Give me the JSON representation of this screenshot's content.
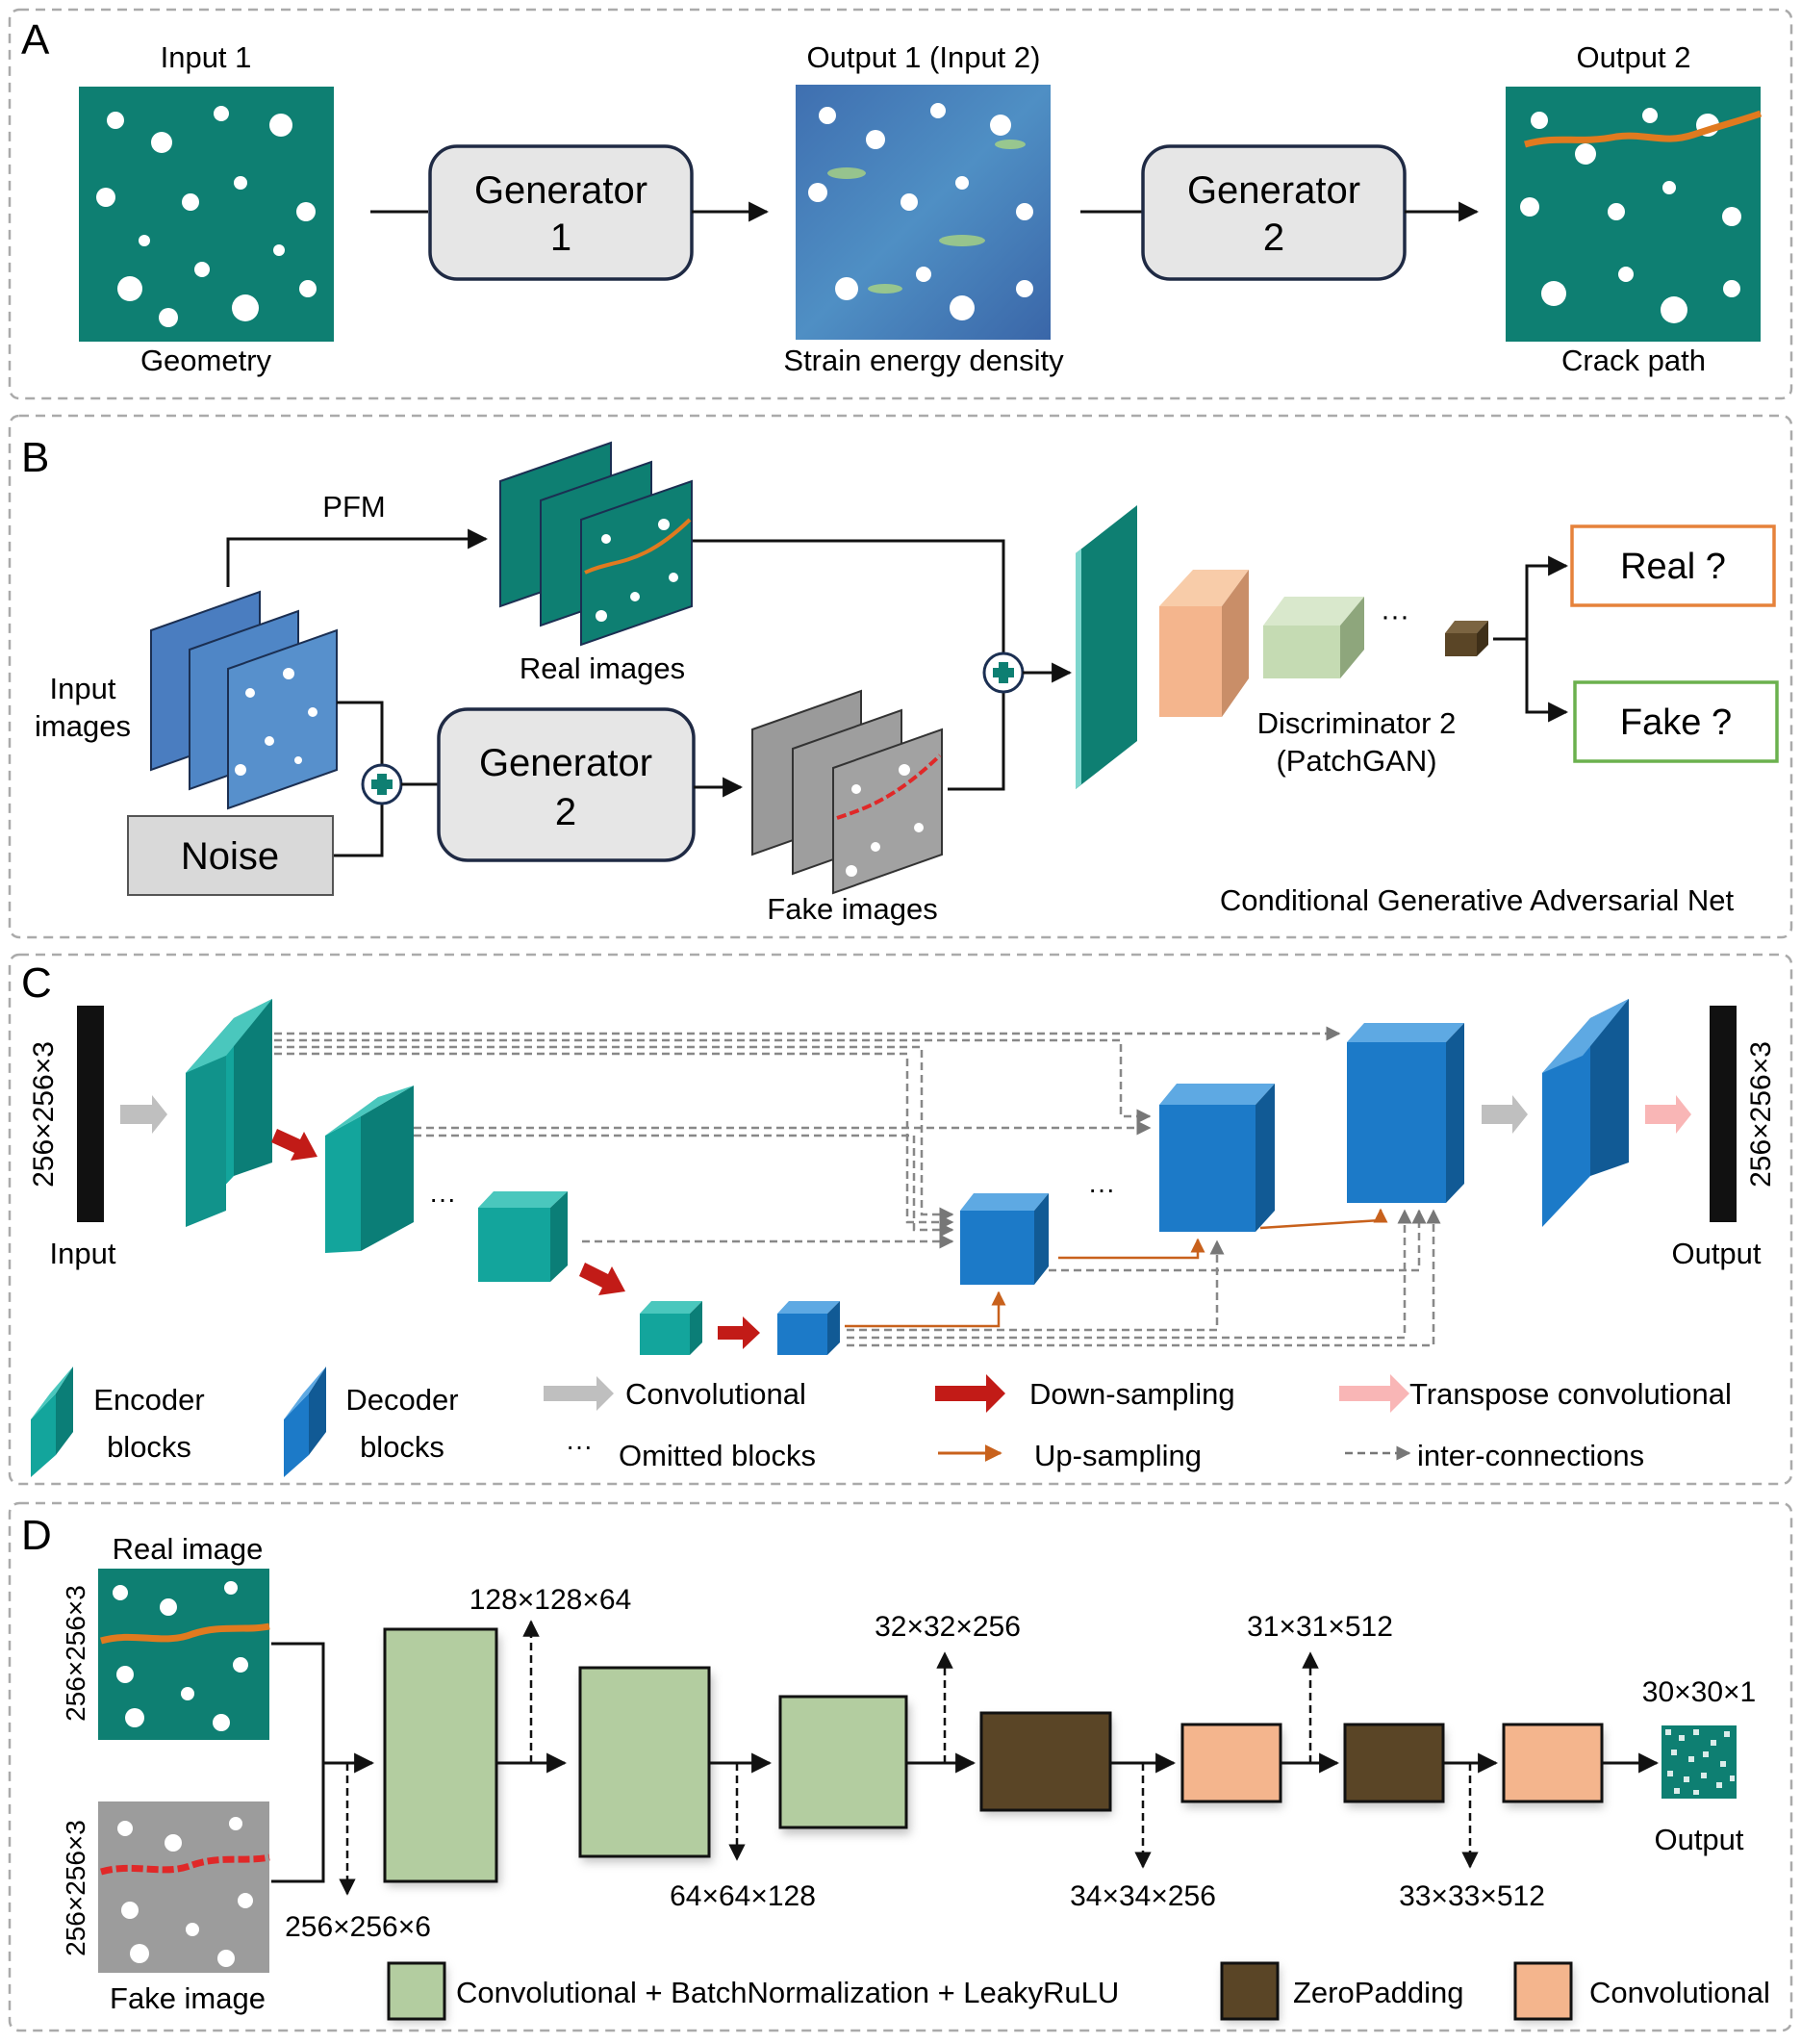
{
  "panels": {
    "a": "A",
    "b": "B",
    "c": "C",
    "d": "D"
  },
  "panel_a": {
    "input_title": "Input 1",
    "input_caption": "Geometry",
    "generator1": [
      "Generator",
      "1"
    ],
    "mid_title": "Output 1 (Input 2)",
    "mid_caption": "Strain energy density",
    "generator2": [
      "Generator",
      "2"
    ],
    "output_title": "Output 2",
    "output_caption": "Crack path"
  },
  "panel_b": {
    "pfm_label": "PFM",
    "input_images": [
      "Input",
      "images"
    ],
    "real_images": "Real images",
    "fake_images": "Fake images",
    "noise": "Noise",
    "generator": [
      "Generator",
      "2"
    ],
    "discriminator": [
      "Discriminator 2",
      "(PatchGAN)"
    ],
    "ellipsis": "···",
    "real_q": "Real ?",
    "fake_q": "Fake ?",
    "footer": "Conditional  Generative  Adversarial  Net"
  },
  "panel_c": {
    "input_dim": "256×256×3",
    "output_dim": "256×256×3",
    "input_label": "Input",
    "output_label": "Output",
    "ellipsis": "···",
    "legend": {
      "encoder": [
        "Encoder",
        "blocks"
      ],
      "decoder": [
        "Decoder",
        "blocks"
      ],
      "convolutional": "Convolutional",
      "omitted": "Omitted  blocks",
      "down": "Down-sampling",
      "up": "Up-sampling",
      "transpose": "Transpose  convolutional",
      "inter": "inter-connections",
      "omitted_mark": "···"
    }
  },
  "panel_d": {
    "real_image": "Real image",
    "fake_image": "Fake image",
    "real_dim": "256×256×3",
    "fake_dim": "256×256×3",
    "concat_dim": "256×256×6",
    "dims": {
      "d1": "128×128×64",
      "d2": "64×64×128",
      "d3": "32×32×256",
      "d4": "34×34×256",
      "d5": "31×31×512",
      "d6": "33×33×512",
      "d7": "30×30×1"
    },
    "output_label": "Output",
    "legend": {
      "conv_bn": "Convolutional  + BatchNormalization  + LeakyRuLU",
      "zero": "ZeroPadding",
      "conv": "Convolutional"
    }
  },
  "colors": {
    "teal": "#0e7f72",
    "encoder": "#13a59c",
    "decoder": "#1c7ac8",
    "crack": "#e07a1f",
    "green_block": "#b3cda0",
    "brown_block": "#5a4526",
    "orange_block": "#f4b58d",
    "real_border": "#e6823b",
    "fake_border": "#6bb14e",
    "down_arrow": "#c21b17",
    "up_arrow": "#c8611c",
    "transpose_arrow": "#f9b6b6"
  }
}
